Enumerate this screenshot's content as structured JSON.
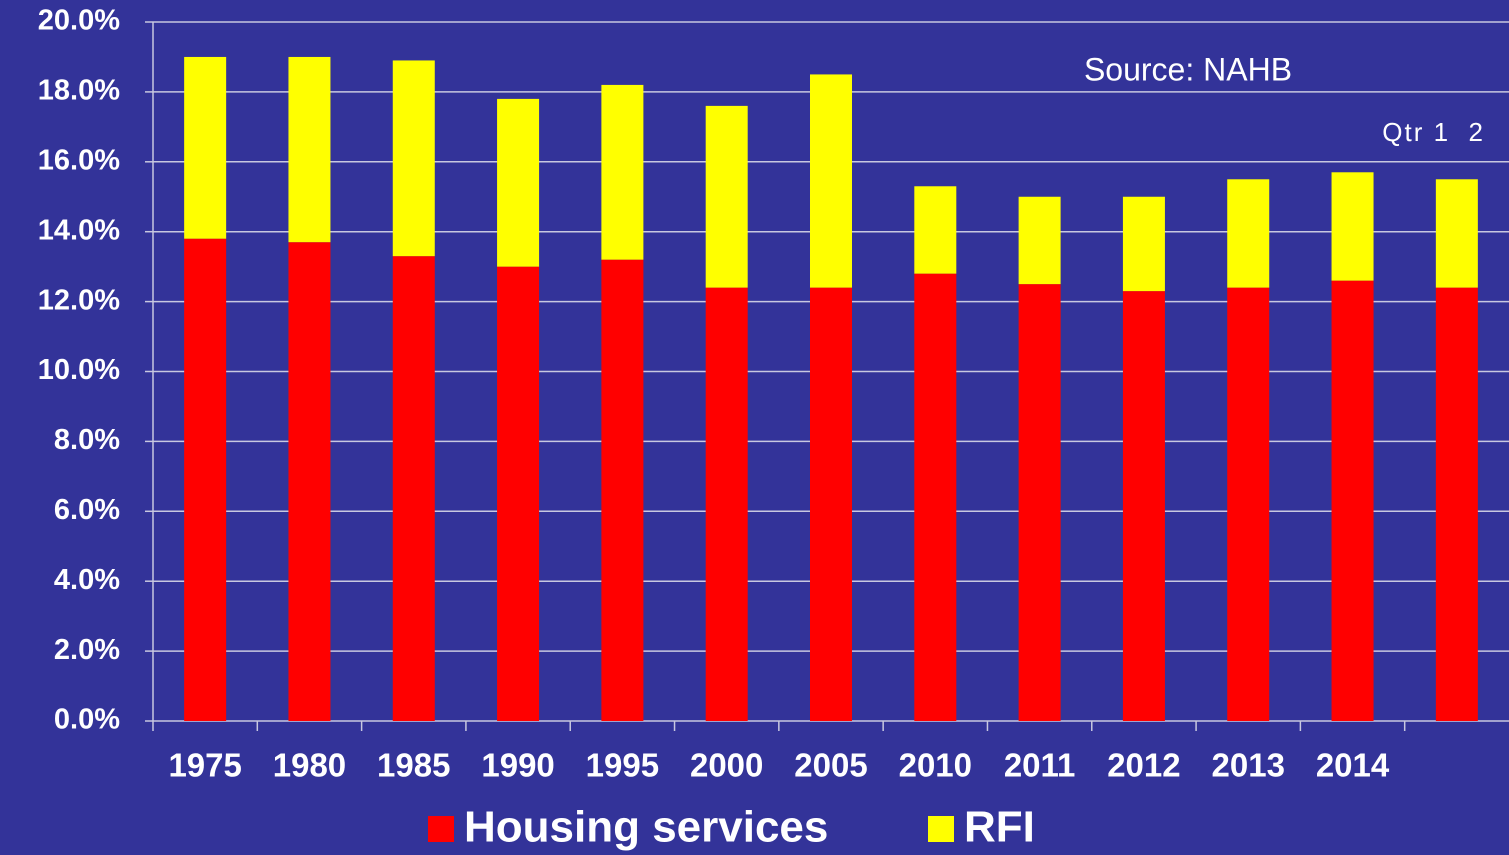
{
  "chart_data": {
    "type": "stacked_bar",
    "categories": [
      "1975",
      "1980",
      "1985",
      "1990",
      "1995",
      "2000",
      "2005",
      "2010",
      "2011",
      "2012",
      "2013",
      "2014",
      null
    ],
    "series": [
      {
        "name": "Housing services",
        "color": "#ff0000",
        "values": [
          13.8,
          13.7,
          13.3,
          13.0,
          13.2,
          12.4,
          12.4,
          12.8,
          12.5,
          12.3,
          12.4,
          12.6,
          12.4
        ]
      },
      {
        "name": "RFI",
        "color": "#ffff00",
        "values": [
          5.2,
          5.3,
          5.6,
          4.8,
          5.0,
          5.2,
          6.1,
          2.5,
          2.5,
          2.7,
          3.1,
          3.1,
          3.1
        ]
      }
    ],
    "annotations": [
      "Source: NAHB",
      "Qtr 1  2"
    ],
    "ylim": [
      0,
      20
    ],
    "yticks": [
      {
        "value": 0,
        "label": "0.0%"
      },
      {
        "value": 2,
        "label": "2.0%"
      },
      {
        "value": 4,
        "label": "4.0%"
      },
      {
        "value": 6,
        "label": "6.0%"
      },
      {
        "value": 8,
        "label": "8.0%"
      },
      {
        "value": 10,
        "label": "10.0%"
      },
      {
        "value": 12,
        "label": "12.0%"
      },
      {
        "value": 14,
        "label": "14.0%"
      },
      {
        "value": 16,
        "label": "16.0%"
      },
      {
        "value": 18,
        "label": "18.0%"
      },
      {
        "value": 20,
        "label": "20.0%"
      }
    ],
    "grid": true,
    "legend": "bottom",
    "background": "#333399"
  }
}
